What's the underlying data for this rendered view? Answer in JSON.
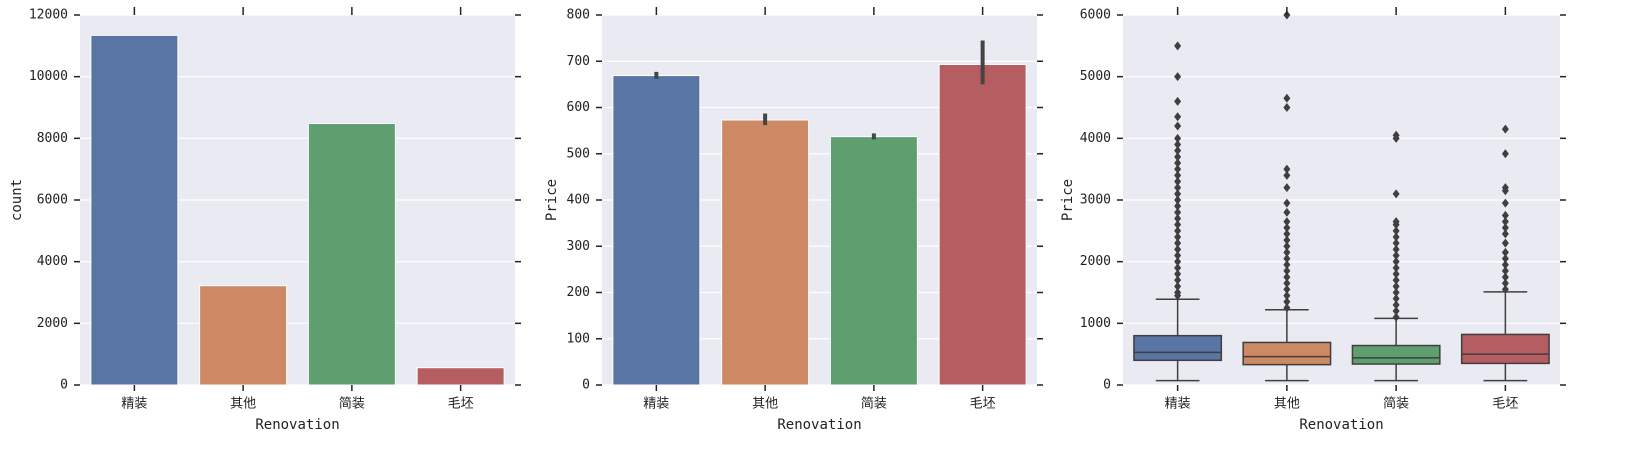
{
  "chart_data": [
    {
      "type": "bar",
      "categories": [
        "精装",
        "其他",
        "简装",
        "毛坯"
      ],
      "values": [
        11340,
        3220,
        8480,
        560
      ],
      "colors": [
        "#5975a4",
        "#cc8963",
        "#5f9e6e",
        "#b55d60"
      ],
      "ylim": [
        0,
        12000
      ],
      "yticks": [
        0,
        2000,
        4000,
        6000,
        8000,
        10000,
        12000
      ],
      "xlabel": "Renovation",
      "ylabel": "count",
      "grid": true
    },
    {
      "type": "bar",
      "categories": [
        "精装",
        "其他",
        "简装",
        "毛坯"
      ],
      "values": [
        669,
        573,
        537,
        693
      ],
      "errors": [
        [
          662,
          677
        ],
        [
          562,
          587
        ],
        [
          531,
          544
        ],
        [
          650,
          745
        ]
      ],
      "colors": [
        "#5975a4",
        "#cc8963",
        "#5f9e6e",
        "#b55d60"
      ],
      "ylim": [
        0,
        800
      ],
      "yticks": [
        0,
        100,
        200,
        300,
        400,
        500,
        600,
        700,
        800
      ],
      "xlabel": "Renovation",
      "ylabel": "Price",
      "grid": true
    },
    {
      "type": "box",
      "categories": [
        "精装",
        "其他",
        "简装",
        "毛坯"
      ],
      "boxes": [
        {
          "whislo": 70,
          "q1": 400,
          "median": 530,
          "q3": 800,
          "whishi": 1390,
          "fliers": [
            1450,
            1500,
            1600,
            1700,
            1800,
            1900,
            2000,
            2100,
            2200,
            2300,
            2400,
            2500,
            2600,
            2700,
            2800,
            2900,
            3000,
            3100,
            3200,
            3300,
            3400,
            3500,
            3600,
            3700,
            3800,
            3900,
            4000,
            4200,
            4350,
            4600,
            5000,
            5500
          ]
        },
        {
          "whislo": 70,
          "q1": 330,
          "median": 460,
          "q3": 690,
          "whishi": 1220,
          "fliers": [
            1250,
            1350,
            1450,
            1550,
            1650,
            1750,
            1850,
            1950,
            2050,
            2150,
            2250,
            2350,
            2450,
            2550,
            2650,
            2800,
            2950,
            3200,
            3400,
            3500,
            4500,
            4650,
            6000
          ]
        },
        {
          "whislo": 70,
          "q1": 340,
          "median": 440,
          "q3": 640,
          "whishi": 1080,
          "fliers": [
            1100,
            1200,
            1300,
            1400,
            1500,
            1600,
            1700,
            1800,
            1900,
            2000,
            2100,
            2200,
            2300,
            2400,
            2500,
            2600,
            2650,
            3100,
            4000,
            4050
          ]
        },
        {
          "whislo": 70,
          "q1": 350,
          "median": 500,
          "q3": 820,
          "whishi": 1510,
          "fliers": [
            1550,
            1650,
            1750,
            1850,
            1950,
            2050,
            2150,
            2300,
            2450,
            2550,
            2650,
            2750,
            2950,
            3150,
            3200,
            3750,
            4150
          ]
        }
      ],
      "colors": [
        "#5975a4",
        "#cc8963",
        "#5f9e6e",
        "#b55d60"
      ],
      "ylim": [
        0,
        6000
      ],
      "yticks": [
        0,
        1000,
        2000,
        3000,
        4000,
        5000,
        6000
      ],
      "xlabel": "Renovation",
      "ylabel": "Price",
      "grid": true
    }
  ]
}
